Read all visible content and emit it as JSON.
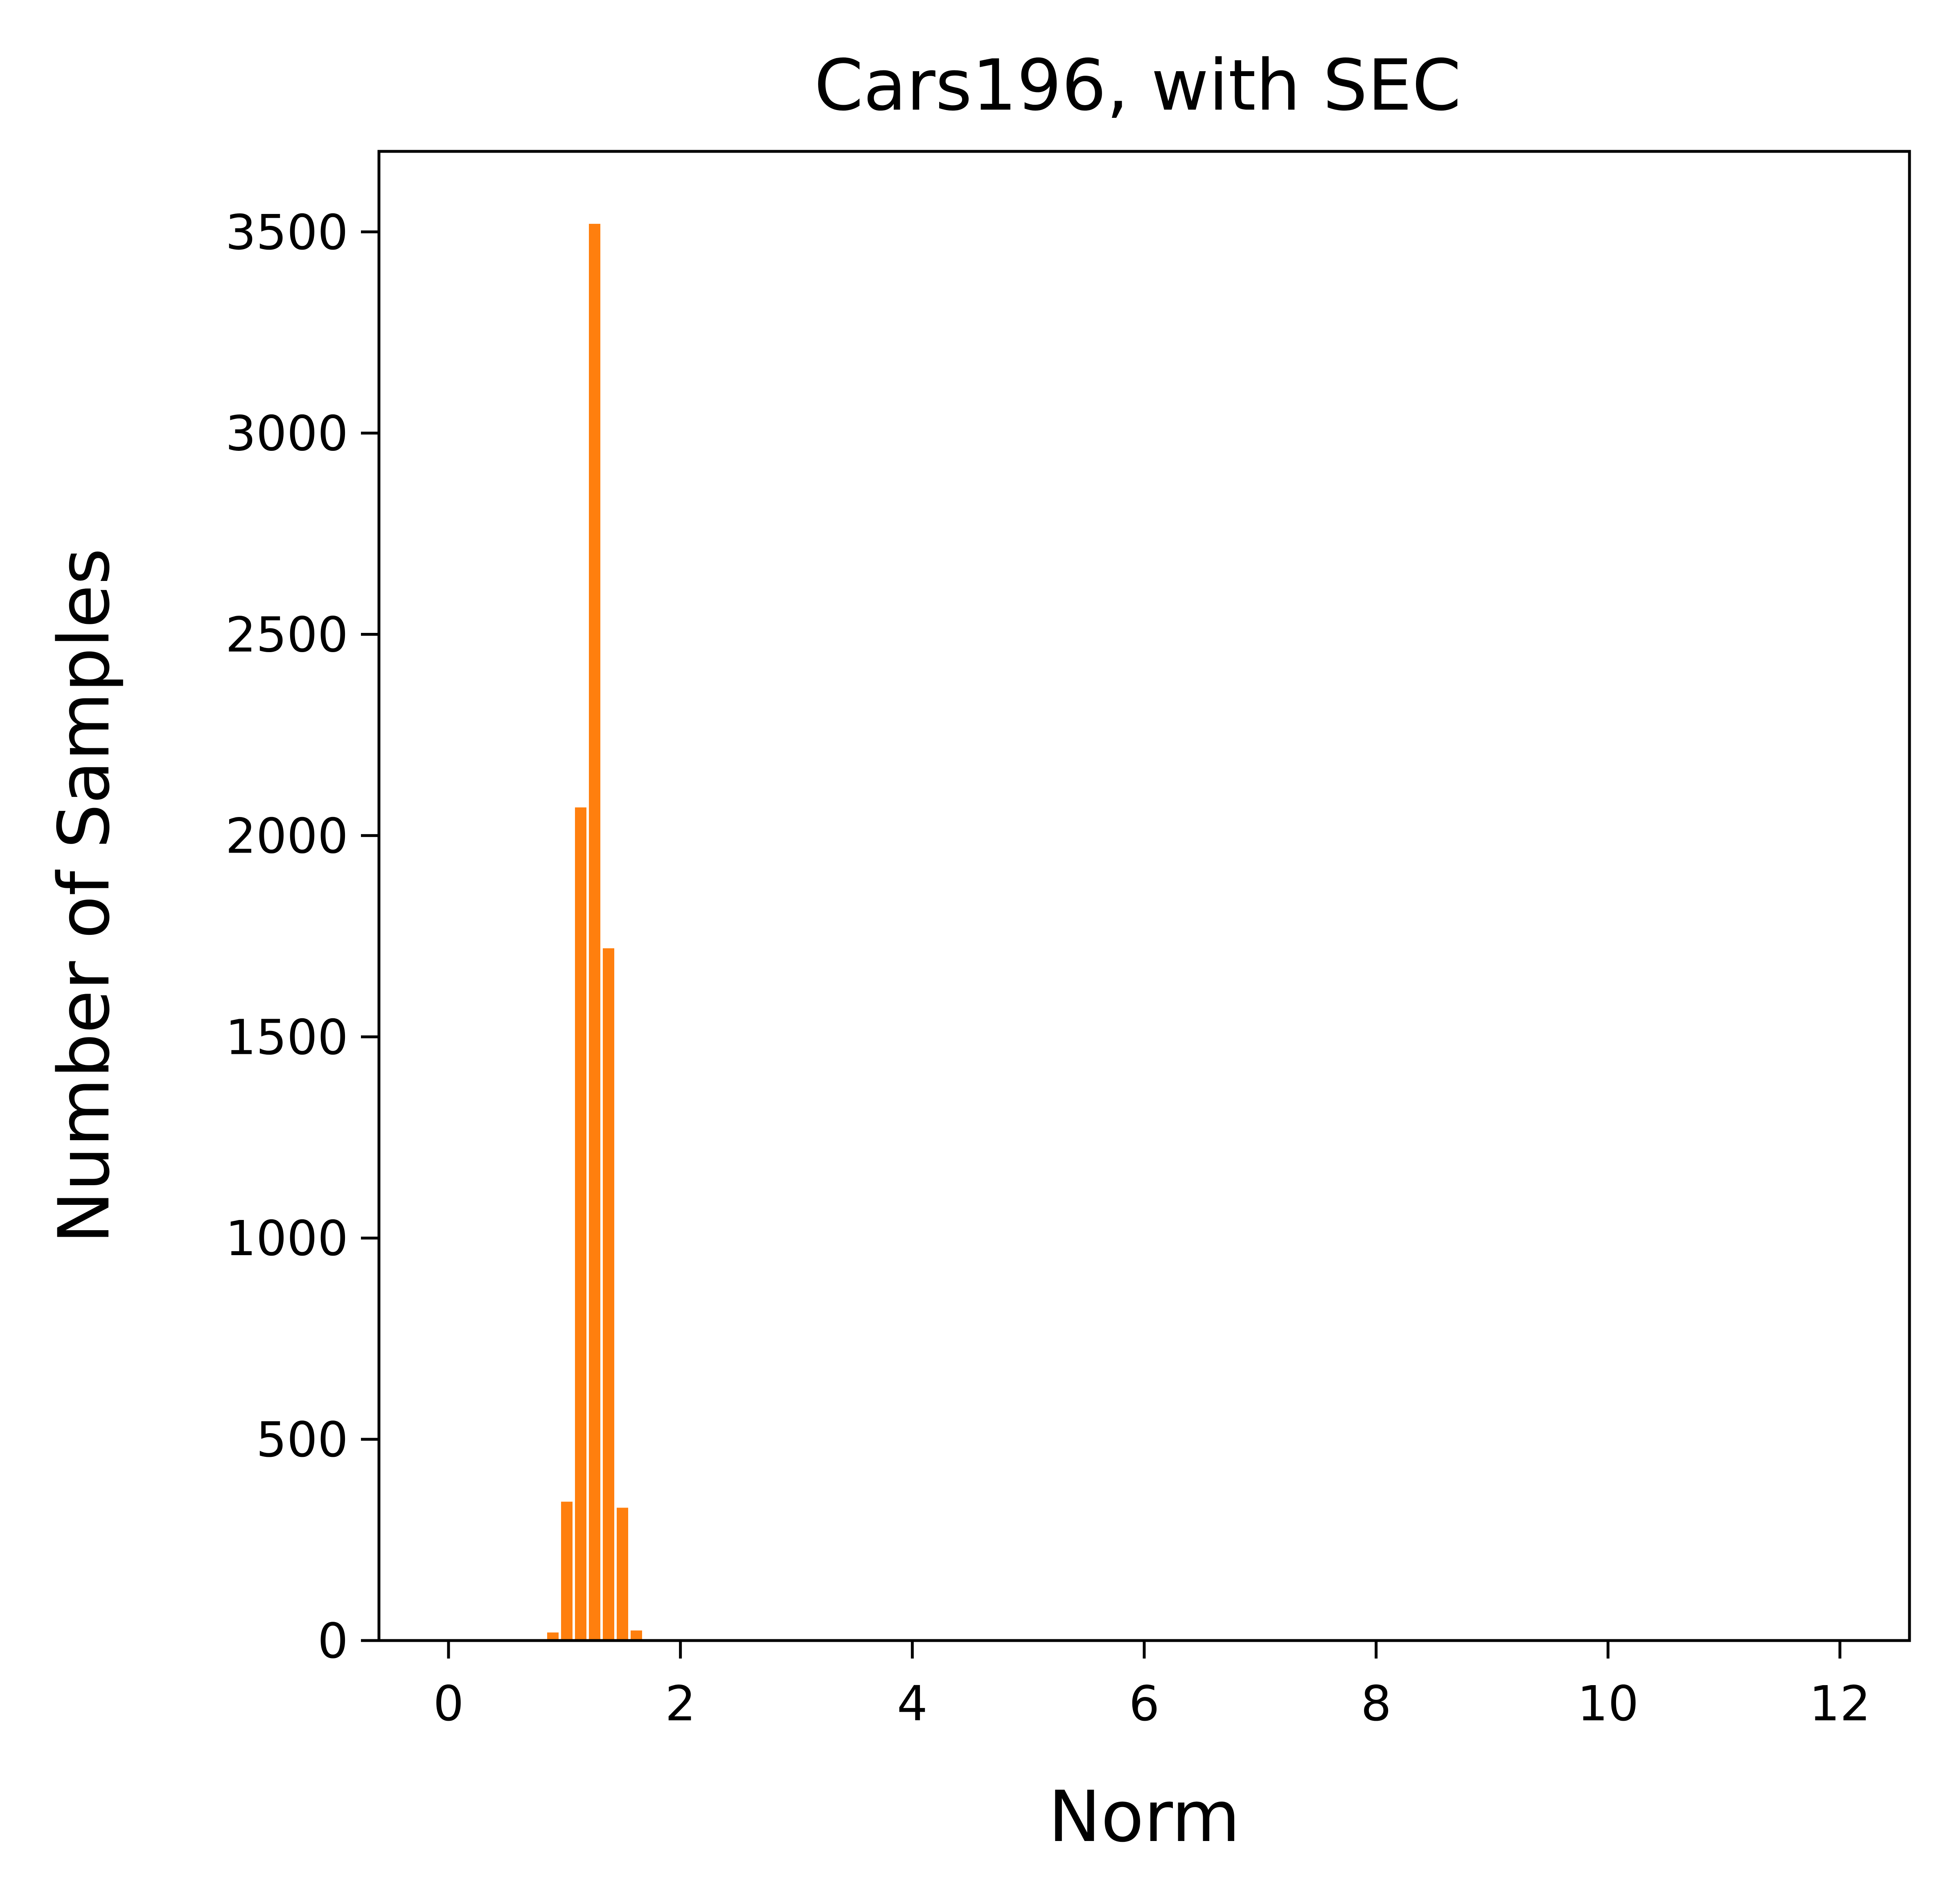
{
  "chart_data": {
    "type": "bar",
    "title": "Cars196, with SEC",
    "xlabel": "Norm",
    "ylabel": "Number of Samples",
    "xlim": [
      -0.6,
      12.6
    ],
    "ylim": [
      0,
      3700
    ],
    "xticks": [
      0,
      2,
      4,
      6,
      8,
      10,
      12
    ],
    "yticks": [
      0,
      500,
      1000,
      1500,
      2000,
      2500,
      3000,
      3500
    ],
    "bin_width": 0.12,
    "bar_color": "#ff7f0e",
    "grid": false,
    "legend": "none",
    "bins": [
      {
        "x": 0.9,
        "value": 20
      },
      {
        "x": 1.02,
        "value": 345
      },
      {
        "x": 1.14,
        "value": 2070
      },
      {
        "x": 1.26,
        "value": 3520
      },
      {
        "x": 1.38,
        "value": 1720
      },
      {
        "x": 1.5,
        "value": 330
      },
      {
        "x": 1.62,
        "value": 25
      }
    ]
  }
}
